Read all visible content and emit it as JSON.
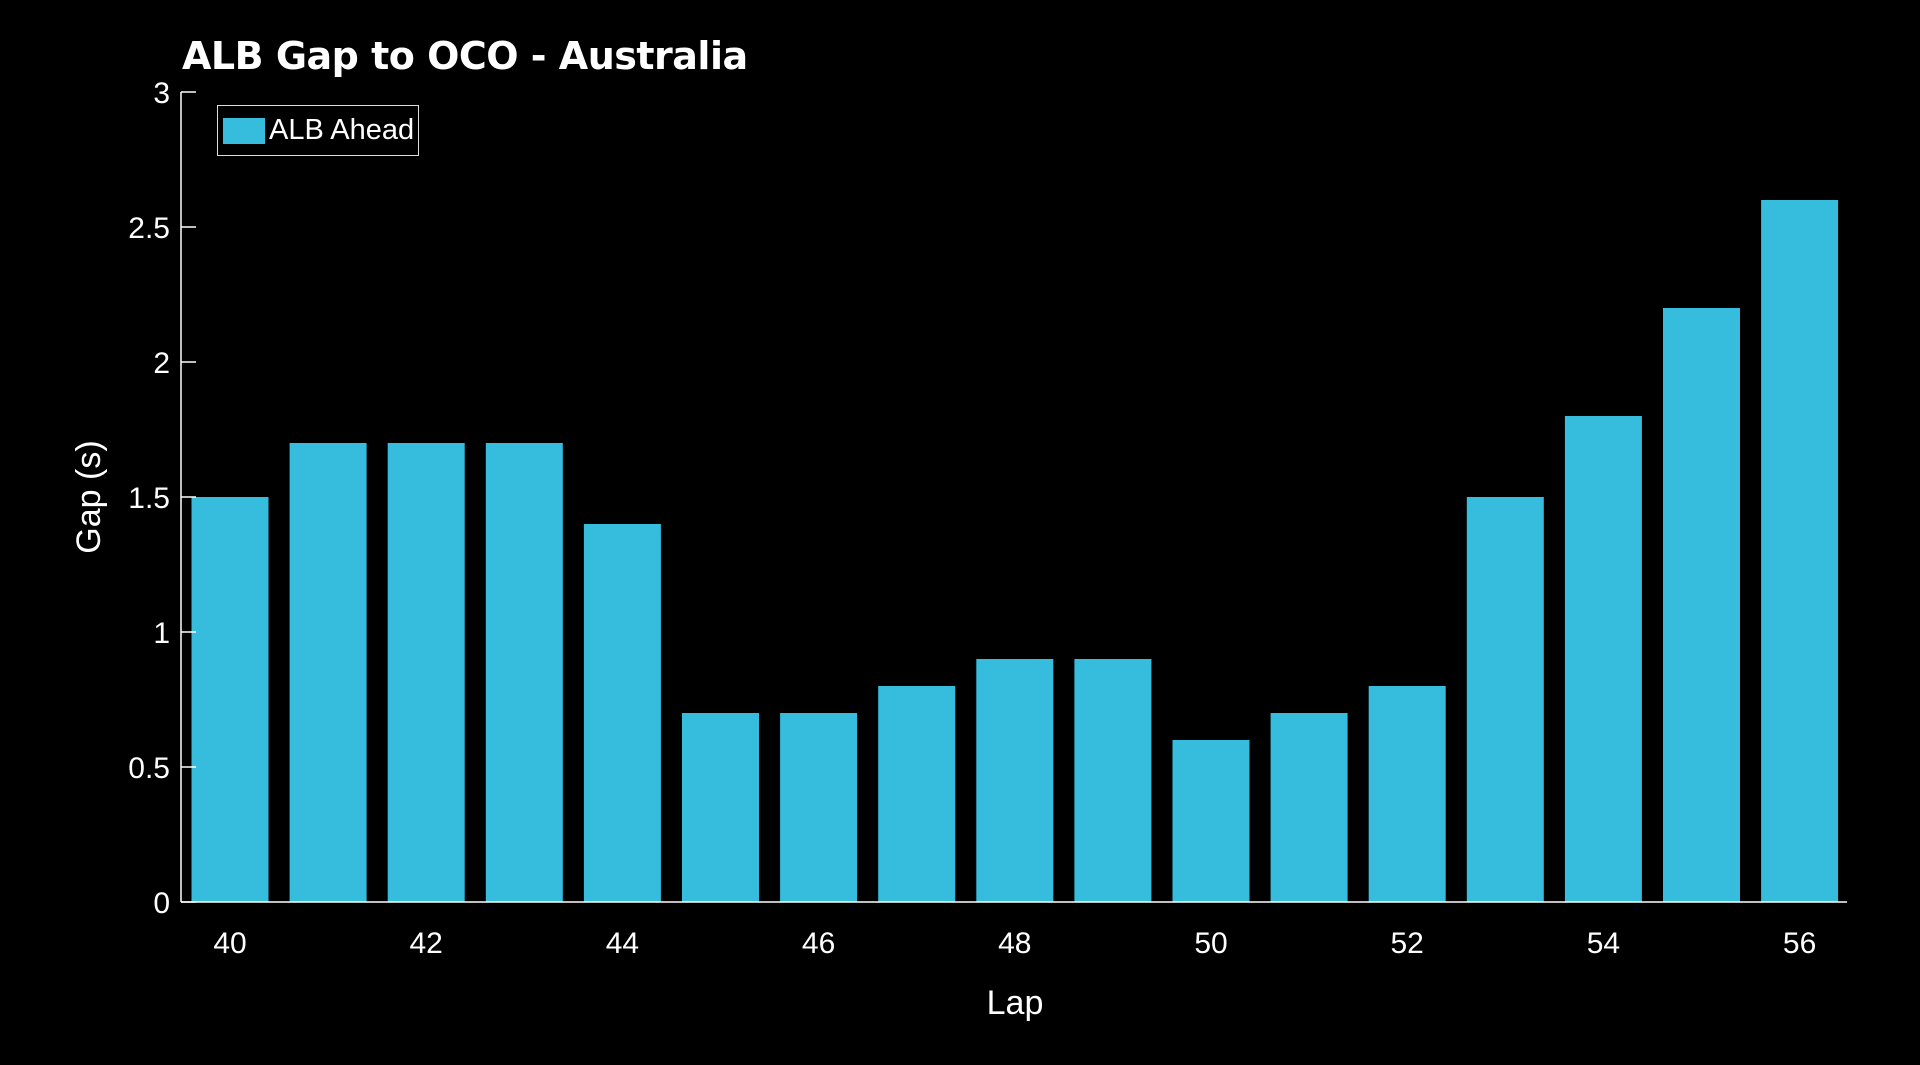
{
  "chart_data": {
    "type": "bar",
    "title": "ALB Gap to OCO - Australia",
    "xlabel": "Lap",
    "ylabel": "Gap (s)",
    "categories": [
      40,
      41,
      42,
      43,
      44,
      45,
      46,
      47,
      48,
      49,
      50,
      51,
      52,
      53,
      54,
      55,
      56
    ],
    "series": [
      {
        "name": "ALB Ahead",
        "color": "#36bddd",
        "values": [
          1.5,
          1.7,
          1.7,
          1.7,
          1.4,
          0.7,
          0.7,
          0.8,
          0.9,
          0.9,
          0.6,
          0.7,
          0.8,
          1.5,
          1.8,
          2.2,
          2.6
        ]
      }
    ],
    "ylim": [
      0,
      3
    ],
    "yticks": [
      "0",
      "0.5",
      "1",
      "1.5",
      "2",
      "2.5",
      "3"
    ],
    "xticks": [
      "40",
      "42",
      "44",
      "46",
      "48",
      "50",
      "52",
      "54",
      "56"
    ],
    "grid": false,
    "legend_position": "top-left",
    "background": "#000000"
  }
}
